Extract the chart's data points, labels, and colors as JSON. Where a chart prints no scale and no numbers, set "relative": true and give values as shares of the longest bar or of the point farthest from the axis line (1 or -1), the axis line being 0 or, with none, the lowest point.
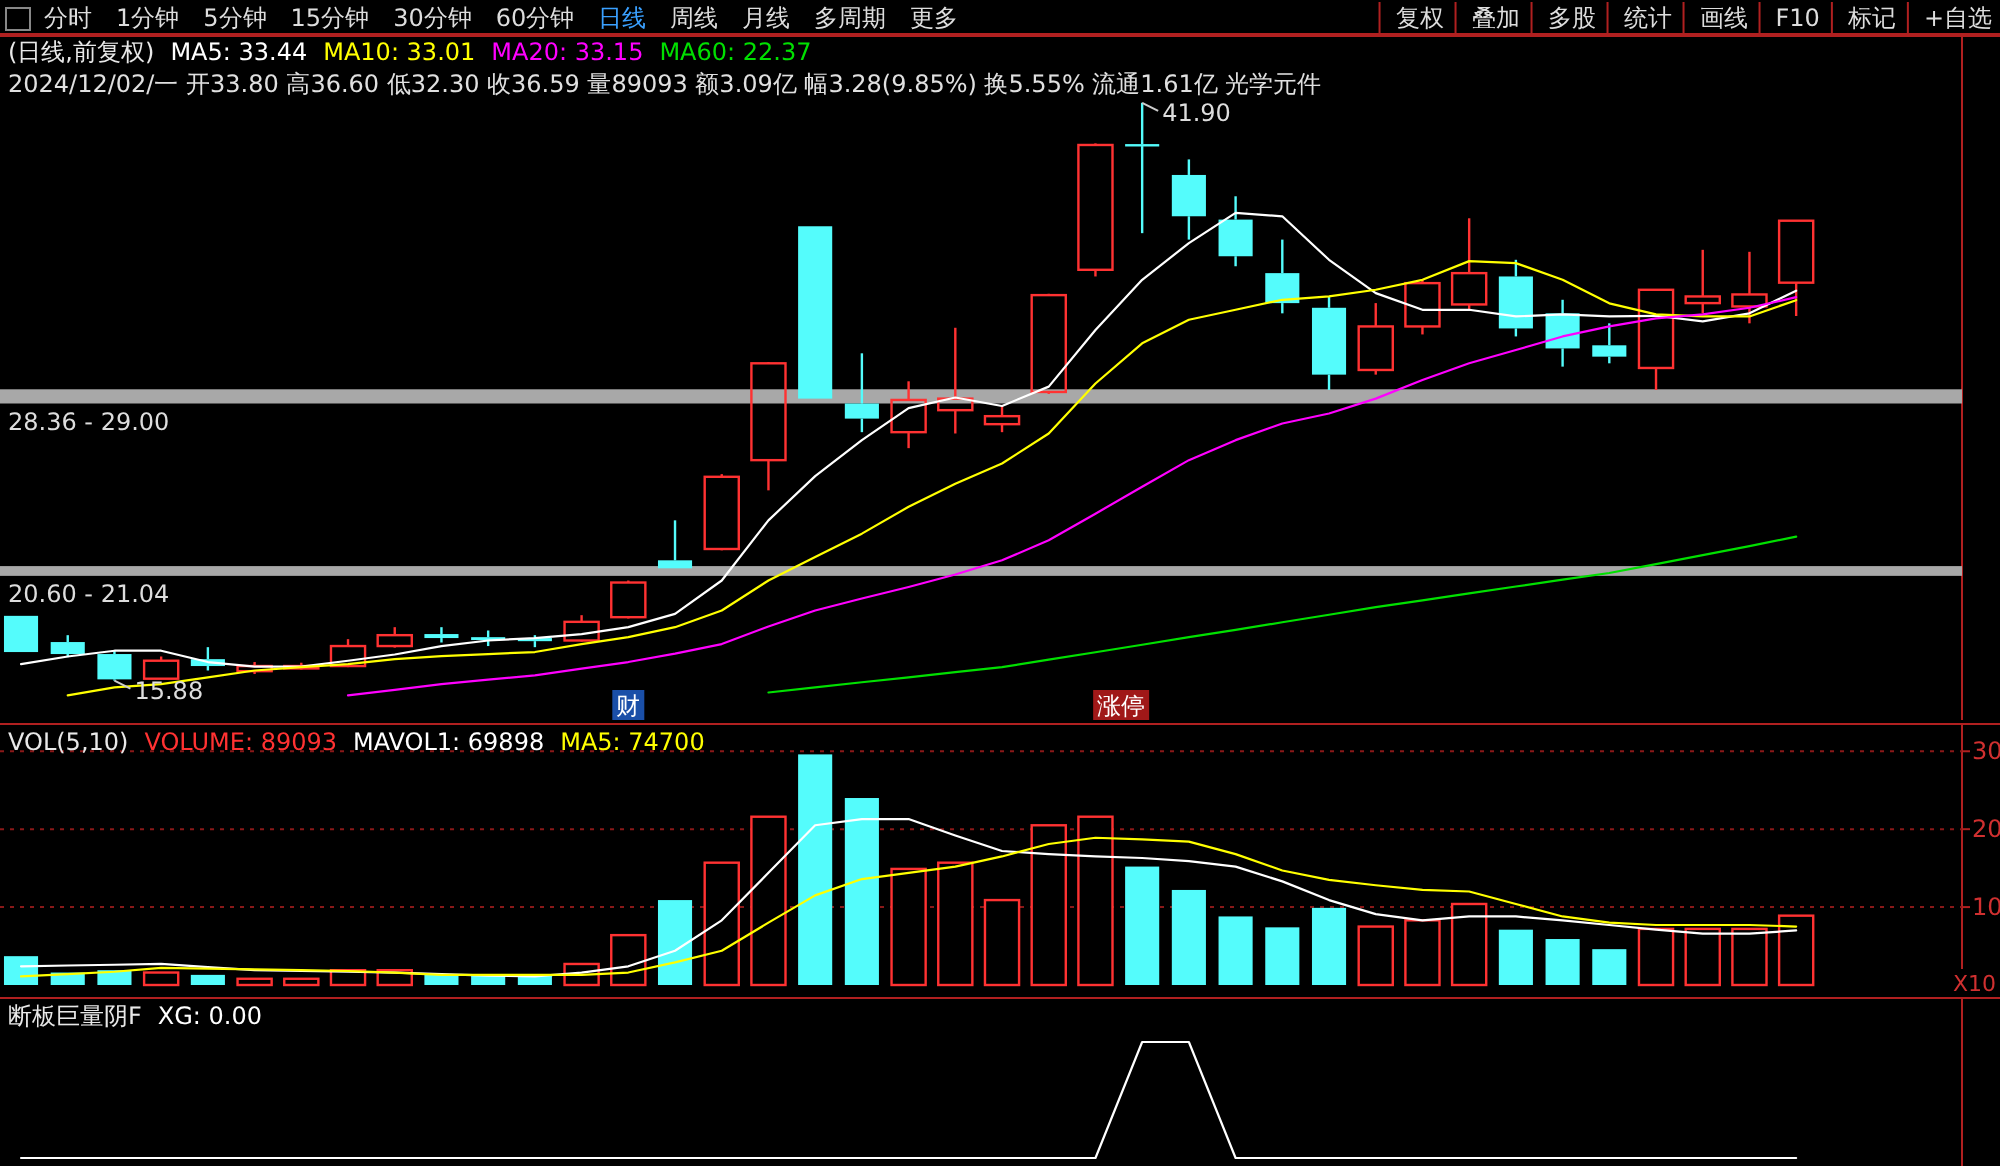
{
  "chart_data": [
    {
      "type": "other",
      "annotations": [
        "分时",
        "1分钟",
        "5分钟",
        "15分钟",
        "30分钟",
        "60分钟",
        "日线",
        "周线",
        "月线",
        "多周期",
        "更多",
        "复权",
        "叠加",
        "多股",
        "统计",
        "画线",
        "F10",
        "标记",
        "+自选"
      ]
    },
    {
      "type": "candlestick",
      "title": "(日线,前复权)",
      "subtitle": "2024/12/02/一 开33.80 高36.60 低32.30 收36.59 量89093 额3.09亿 幅3.28(9.85%) 换5.55% 流通1.61亿 光学元件",
      "categories": [
        null,
        null,
        null,
        null,
        null,
        null,
        null,
        null,
        null,
        null,
        null,
        null,
        null,
        null,
        null,
        null,
        null,
        null,
        null,
        null,
        null,
        null,
        null,
        null,
        null,
        null,
        null,
        null,
        null,
        null,
        null,
        null,
        null,
        null,
        null,
        null,
        null,
        null,
        null
      ],
      "ohlc": [
        [
          18.8,
          18.8,
          17.17,
          17.17
        ],
        [
          17.62,
          17.93,
          16.94,
          17.08
        ],
        [
          17.08,
          17.23,
          15.88,
          15.94
        ],
        [
          15.97,
          16.97,
          15.97,
          16.78
        ],
        [
          16.85,
          17.39,
          16.34,
          16.54
        ],
        [
          16.31,
          16.72,
          16.18,
          16.54
        ],
        [
          16.49,
          16.69,
          16.38,
          16.54
        ],
        [
          16.54,
          17.75,
          16.49,
          17.44
        ],
        [
          17.44,
          18.29,
          17.37,
          17.93
        ],
        [
          17.98,
          18.29,
          17.6,
          17.8
        ],
        [
          17.84,
          18.14,
          17.44,
          17.71
        ],
        [
          17.8,
          17.93,
          17.39,
          17.66
        ],
        [
          17.69,
          18.83,
          17.64,
          18.53
        ],
        [
          18.74,
          20.39,
          18.68,
          20.3
        ],
        [
          21.3,
          23.1,
          20.94,
          20.94
        ],
        [
          21.81,
          25.18,
          21.75,
          25.06
        ],
        [
          25.81,
          30.23,
          24.45,
          30.17
        ],
        [
          36.34,
          36.37,
          28.56,
          28.58
        ],
        [
          28.36,
          30.62,
          27.07,
          27.68
        ],
        [
          27.07,
          29.36,
          26.35,
          28.52
        ],
        [
          28.06,
          31.77,
          27.01,
          28.58
        ],
        [
          27.43,
          28.25,
          27.07,
          27.79
        ],
        [
          28.88,
          33.3,
          28.79,
          33.24
        ],
        [
          34.38,
          40.07,
          34.08,
          40.0
        ],
        [
          40.04,
          41.9,
          36.03,
          39.95
        ],
        [
          38.65,
          39.35,
          35.74,
          36.79
        ],
        [
          36.64,
          37.69,
          34.54,
          34.99
        ],
        [
          34.23,
          35.74,
          32.42,
          32.88
        ],
        [
          32.67,
          33.18,
          28.97,
          29.66
        ],
        [
          29.87,
          32.88,
          29.66,
          31.83
        ],
        [
          31.83,
          33.93,
          31.47,
          33.78
        ],
        [
          32.82,
          36.7,
          32.58,
          34.23
        ],
        [
          34.08,
          34.83,
          31.38,
          31.74
        ],
        [
          32.42,
          33.03,
          30.02,
          30.84
        ],
        [
          30.98,
          31.97,
          30.17,
          30.47
        ],
        [
          29.96,
          33.48,
          28.97,
          33.48
        ],
        [
          32.88,
          35.28,
          32.42,
          33.18
        ],
        [
          32.73,
          35.19,
          31.97,
          33.27
        ],
        [
          33.8,
          36.6,
          32.3,
          36.59
        ]
      ],
      "colors": [
        "#54fcfc",
        "#54fcfc",
        "#54fcfc",
        "#ff3232",
        "#54fcfc",
        "#ff3232",
        "#ff3232",
        "#ff3232",
        "#ff3232",
        "#54fcfc",
        "#54fcfc",
        "#54fcfc",
        "#ff3232",
        "#ff3232",
        "#54fcfc",
        "#ff3232",
        "#ff3232",
        "#54fcfc",
        "#54fcfc",
        "#ff3232",
        "#ff3232",
        "#ff3232",
        "#ff3232",
        "#ff3232",
        "#54fcfc",
        "#54fcfc",
        "#54fcfc",
        "#54fcfc",
        "#54fcfc",
        "#ff3232",
        "#ff3232",
        "#ff3232",
        "#54fcfc",
        "#54fcfc",
        "#54fcfc",
        "#ff3232",
        "#ff3232",
        "#ff3232",
        "#ff3232"
      ],
      "series": [
        {
          "name": "MA5: 33.44",
          "type": "line",
          "color": "#ffffff",
          "values": [
            16.63,
            16.97,
            17.23,
            17.23,
            16.72,
            16.51,
            16.51,
            16.78,
            17.06,
            17.44,
            17.69,
            17.8,
            17.98,
            18.29,
            18.89,
            20.39,
            23.1,
            25.09,
            26.71,
            28.15,
            28.63,
            28.25,
            29.12,
            31.67,
            33.93,
            35.58,
            36.94,
            36.79,
            34.83,
            33.33,
            32.58,
            32.58,
            32.28,
            32.37,
            32.28,
            32.31,
            32.06,
            32.42,
            33.44
          ]
        },
        {
          "name": "MA10: 33.01",
          "type": "line",
          "color": "#ffff00",
          "values": [
            null,
            15.22,
            15.58,
            15.73,
            16.03,
            16.34,
            16.49,
            16.63,
            16.85,
            16.99,
            17.08,
            17.17,
            17.53,
            17.84,
            18.29,
            19.04,
            20.39,
            21.45,
            22.5,
            23.71,
            24.75,
            25.66,
            27.01,
            29.26,
            31.07,
            32.13,
            32.58,
            33.03,
            33.18,
            33.48,
            33.93,
            34.77,
            34.68,
            33.93,
            32.87,
            32.37,
            32.28,
            32.28,
            33.01
          ]
        },
        {
          "name": "MA20: 33.15",
          "type": "line",
          "color": "#ff00ff",
          "values": [
            null,
            null,
            null,
            null,
            null,
            null,
            null,
            15.22,
            15.47,
            15.73,
            15.93,
            16.12,
            16.42,
            16.72,
            17.1,
            17.53,
            18.32,
            19.04,
            19.58,
            20.1,
            20.66,
            21.3,
            22.2,
            23.4,
            24.61,
            25.81,
            26.71,
            27.46,
            27.91,
            28.58,
            29.42,
            30.17,
            30.77,
            31.38,
            31.83,
            32.19,
            32.37,
            32.67,
            33.15
          ]
        },
        {
          "name": "MA60: 22.37",
          "type": "line",
          "color": "#00e000",
          "values": [
            null,
            null,
            null,
            null,
            null,
            null,
            null,
            null,
            null,
            null,
            null,
            null,
            null,
            null,
            null,
            null,
            15.35,
            15.58,
            15.81,
            16.03,
            16.27,
            16.49,
            16.83,
            17.16,
            17.5,
            17.84,
            18.17,
            18.51,
            18.85,
            19.19,
            19.5,
            19.81,
            20.12,
            20.43,
            20.73,
            21.13,
            21.53,
            21.94,
            22.37
          ]
        }
      ],
      "bands": [
        {
          "axis": "y",
          "from": 20.6,
          "to": 21.04,
          "label": "20.60 - 21.04",
          "color": "#a8a8a8"
        },
        {
          "axis": "y",
          "from": 28.36,
          "to": 29.0,
          "label": "28.36 - 29.00",
          "color": "#a8a8a8"
        }
      ],
      "annotations": [
        "41.90",
        "15.88",
        "财",
        "涨停"
      ]
    },
    {
      "type": "bar",
      "title": "VOL(5,10)",
      "categories": [
        null,
        null,
        null,
        null,
        null,
        null,
        null,
        null,
        null,
        null,
        null,
        null,
        null,
        null,
        null,
        null,
        null,
        null,
        null,
        null,
        null,
        null,
        null,
        null,
        null,
        null,
        null,
        null,
        null,
        null,
        null,
        null,
        null,
        null,
        null,
        null,
        null,
        null,
        null
      ],
      "ylim": [
        0,
        33.5
      ],
      "yticks": [
        10,
        20,
        30
      ],
      "grid": "y",
      "series": [
        {
          "name": "VOLUME: 89093",
          "type": "bar",
          "colors": [
            "#54fcfc",
            "#54fcfc",
            "#54fcfc",
            "#ff3232",
            "#54fcfc",
            "#ff3232",
            "#ff3232",
            "#ff3232",
            "#ff3232",
            "#54fcfc",
            "#54fcfc",
            "#54fcfc",
            "#ff3232",
            "#ff3232",
            "#54fcfc",
            "#ff3232",
            "#ff3232",
            "#54fcfc",
            "#54fcfc",
            "#ff3232",
            "#ff3232",
            "#ff3232",
            "#ff3232",
            "#ff3232",
            "#54fcfc",
            "#54fcfc",
            "#54fcfc",
            "#54fcfc",
            "#54fcfc",
            "#ff3232",
            "#ff3232",
            "#ff3232",
            "#54fcfc",
            "#54fcfc",
            "#54fcfc",
            "#ff3232",
            "#ff3232",
            "#ff3232",
            "#ff3232"
          ],
          "values": [
            3.7,
            1.6,
            1.9,
            1.6,
            1.3,
            0.8,
            0.8,
            1.9,
            1.9,
            1.3,
            1.4,
            1.4,
            2.7,
            6.4,
            10.9,
            15.7,
            21.6,
            29.6,
            24.0,
            14.9,
            15.7,
            10.9,
            20.5,
            21.6,
            15.2,
            12.2,
            8.8,
            7.4,
            9.9,
            7.5,
            8.3,
            10.4,
            7.1,
            5.9,
            4.6,
            7.2,
            7.2,
            7.2,
            8.9
          ]
        },
        {
          "name": "MAVOL1: 69898",
          "type": "line",
          "color": "#ffffff",
          "values": [
            2.4,
            2.5,
            2.6,
            2.7,
            2.3,
            1.9,
            1.8,
            1.7,
            1.6,
            1.4,
            1.2,
            1.1,
            1.6,
            2.4,
            4.4,
            8.3,
            14.4,
            20.5,
            21.3,
            21.3,
            19.2,
            17.2,
            16.8,
            16.5,
            16.3,
            15.9,
            15.2,
            13.3,
            10.9,
            9.1,
            8.3,
            8.8,
            8.8,
            8.3,
            7.7,
            7.1,
            6.6,
            6.6,
            7.0
          ]
        },
        {
          "name": "MA5: 74700",
          "type": "line",
          "color": "#ffff00",
          "values": [
            1.1,
            1.4,
            1.7,
            2.2,
            2.1,
            2.0,
            1.9,
            1.8,
            1.6,
            1.3,
            1.3,
            1.3,
            1.3,
            1.6,
            2.9,
            4.4,
            8.0,
            11.5,
            13.6,
            14.4,
            15.2,
            16.5,
            18.1,
            18.9,
            18.7,
            18.4,
            16.8,
            14.7,
            13.5,
            12.8,
            12.2,
            12.0,
            10.4,
            8.8,
            8.0,
            7.7,
            7.7,
            7.7,
            7.5
          ]
        }
      ],
      "annotations": [
        "X10"
      ]
    },
    {
      "type": "line",
      "title": "断板巨量阴F",
      "relative": true,
      "categories": [
        null,
        null,
        null,
        null,
        null,
        null,
        null,
        null,
        null,
        null,
        null,
        null,
        null,
        null,
        null,
        null,
        null,
        null,
        null,
        null,
        null,
        null,
        null,
        null,
        null,
        null,
        null,
        null,
        null,
        null,
        null,
        null,
        null,
        null,
        null,
        null,
        null,
        null,
        null
      ],
      "series": [
        {
          "name": "XG: 0.00",
          "color": "#ffffff",
          "values": [
            0,
            0,
            0,
            0,
            0,
            0,
            0,
            0,
            0,
            0,
            0,
            0,
            0,
            0,
            0,
            0,
            0,
            0,
            0,
            0,
            0,
            0,
            0,
            0,
            1,
            1,
            0,
            0,
            0,
            0,
            0,
            0,
            0,
            0,
            0,
            0,
            0,
            0,
            0
          ]
        }
      ]
    }
  ]
}
